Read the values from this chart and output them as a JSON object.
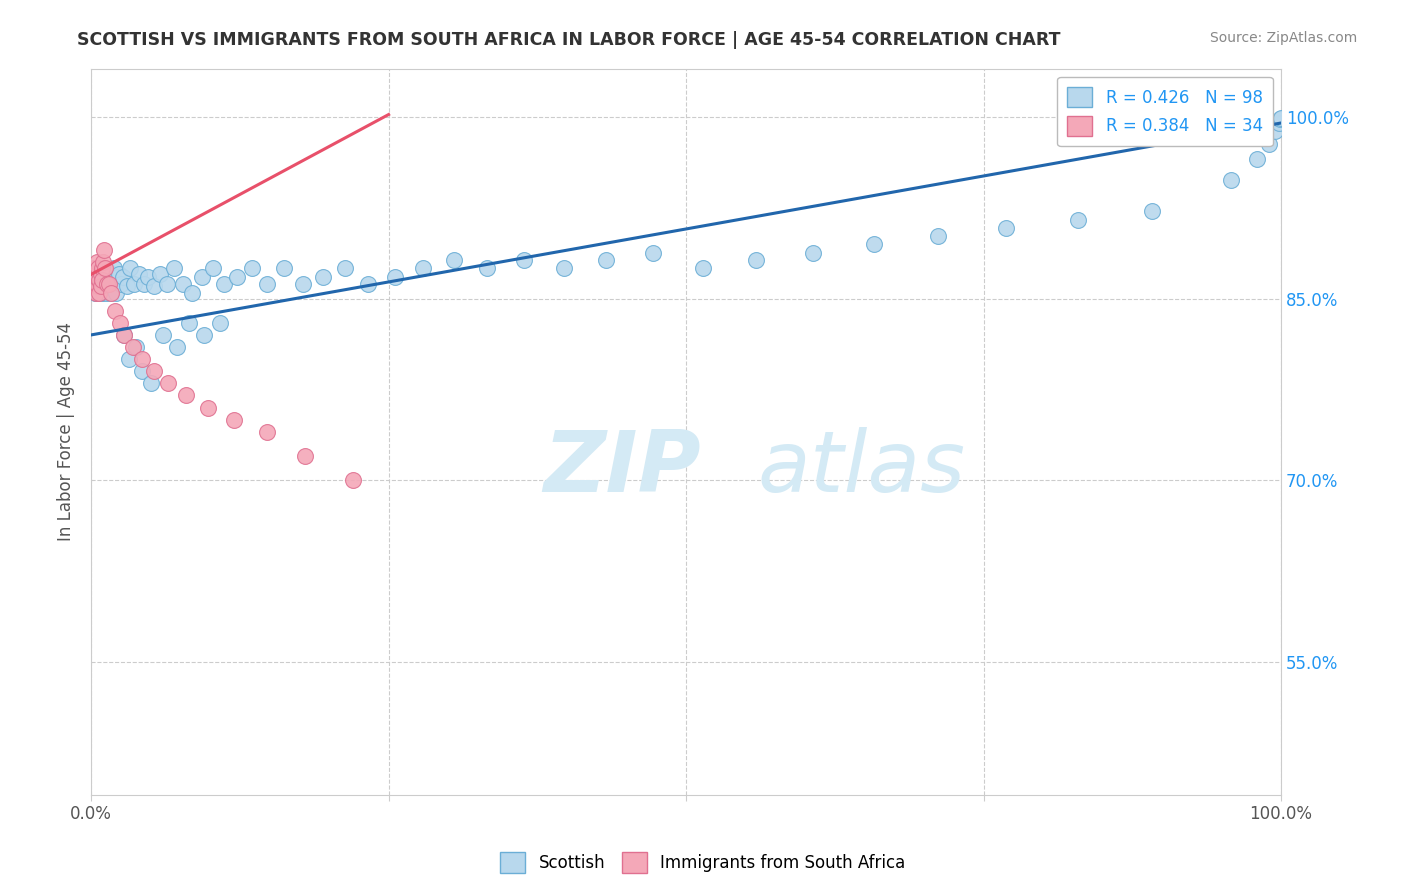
{
  "title": "SCOTTISH VS IMMIGRANTS FROM SOUTH AFRICA IN LABOR FORCE | AGE 45-54 CORRELATION CHART",
  "source_text": "Source: ZipAtlas.com",
  "ylabel": "In Labor Force | Age 45-54",
  "xlim": [
    0.0,
    1.0
  ],
  "ylim": [
    0.44,
    1.04
  ],
  "x_ticks": [
    0.0,
    0.25,
    0.5,
    0.75,
    1.0
  ],
  "x_tick_labels": [
    "0.0%",
    "",
    "",
    "",
    "100.0%"
  ],
  "y_ticks_right": [
    0.55,
    0.7,
    0.85,
    1.0
  ],
  "y_tick_labels_right": [
    "55.0%",
    "70.0%",
    "85.0%",
    "100.0%"
  ],
  "legend_blue_label": "R = 0.426   N = 98",
  "legend_pink_label": "R = 0.384   N = 34",
  "scatter_blue": {
    "color": "#b8d8ed",
    "edge_color": "#6baed6",
    "x": [
      0.002,
      0.002,
      0.003,
      0.003,
      0.004,
      0.004,
      0.005,
      0.005,
      0.005,
      0.006,
      0.006,
      0.006,
      0.007,
      0.007,
      0.007,
      0.008,
      0.008,
      0.008,
      0.009,
      0.009,
      0.01,
      0.01,
      0.01,
      0.011,
      0.011,
      0.012,
      0.012,
      0.013,
      0.013,
      0.014,
      0.015,
      0.015,
      0.016,
      0.017,
      0.018,
      0.019,
      0.02,
      0.021,
      0.022,
      0.023,
      0.025,
      0.027,
      0.03,
      0.033,
      0.036,
      0.04,
      0.044,
      0.048,
      0.053,
      0.058,
      0.064,
      0.07,
      0.077,
      0.085,
      0.093,
      0.102,
      0.112,
      0.123,
      0.135,
      0.148,
      0.162,
      0.178,
      0.195,
      0.213,
      0.233,
      0.255,
      0.279,
      0.305,
      0.333,
      0.364,
      0.397,
      0.433,
      0.472,
      0.514,
      0.559,
      0.607,
      0.658,
      0.712,
      0.769,
      0.829,
      0.892,
      0.958,
      0.98,
      0.99,
      0.995,
      0.998,
      0.999,
      1.0,
      0.028,
      0.032,
      0.038,
      0.043,
      0.05,
      0.06,
      0.072,
      0.082,
      0.095,
      0.108
    ],
    "y": [
      0.86,
      0.875,
      0.855,
      0.87,
      0.86,
      0.875,
      0.865,
      0.855,
      0.875,
      0.86,
      0.87,
      0.855,
      0.865,
      0.875,
      0.858,
      0.862,
      0.87,
      0.855,
      0.868,
      0.875,
      0.86,
      0.87,
      0.855,
      0.865,
      0.875,
      0.86,
      0.87,
      0.865,
      0.855,
      0.862,
      0.858,
      0.872,
      0.862,
      0.855,
      0.868,
      0.875,
      0.862,
      0.855,
      0.868,
      0.87,
      0.862,
      0.868,
      0.86,
      0.875,
      0.862,
      0.87,
      0.862,
      0.868,
      0.86,
      0.87,
      0.862,
      0.875,
      0.862,
      0.855,
      0.868,
      0.875,
      0.862,
      0.868,
      0.875,
      0.862,
      0.875,
      0.862,
      0.868,
      0.875,
      0.862,
      0.868,
      0.875,
      0.882,
      0.875,
      0.882,
      0.875,
      0.882,
      0.888,
      0.875,
      0.882,
      0.888,
      0.895,
      0.902,
      0.908,
      0.915,
      0.922,
      0.948,
      0.965,
      0.978,
      0.988,
      0.995,
      0.998,
      0.999,
      0.82,
      0.8,
      0.81,
      0.79,
      0.78,
      0.82,
      0.81,
      0.83,
      0.82,
      0.83
    ]
  },
  "scatter_pink": {
    "color": "#f4a8b8",
    "edge_color": "#e07090",
    "x": [
      0.002,
      0.003,
      0.003,
      0.004,
      0.004,
      0.005,
      0.005,
      0.006,
      0.006,
      0.007,
      0.007,
      0.008,
      0.008,
      0.009,
      0.009,
      0.01,
      0.011,
      0.012,
      0.013,
      0.015,
      0.017,
      0.02,
      0.024,
      0.028,
      0.035,
      0.043,
      0.053,
      0.065,
      0.08,
      0.098,
      0.12,
      0.148,
      0.18,
      0.22
    ],
    "y": [
      0.87,
      0.86,
      0.875,
      0.855,
      0.87,
      0.865,
      0.88,
      0.86,
      0.875,
      0.865,
      0.855,
      0.87,
      0.86,
      0.875,
      0.865,
      0.88,
      0.89,
      0.875,
      0.862,
      0.862,
      0.855,
      0.84,
      0.83,
      0.82,
      0.81,
      0.8,
      0.79,
      0.78,
      0.77,
      0.76,
      0.75,
      0.74,
      0.72,
      0.7
    ]
  },
  "regression_blue": {
    "color": "#2166ac",
    "x_start": 0.0,
    "y_start": 0.82,
    "x_end": 1.0,
    "y_end": 0.995
  },
  "regression_pink": {
    "color": "#e8506a",
    "x_start": 0.0,
    "y_start": 0.87,
    "x_end": 0.25,
    "y_end": 1.002
  },
  "watermark_line1": "ZIP",
  "watermark_line2": "atlas",
  "watermark_color": "#d4eaf5",
  "background_color": "#ffffff",
  "grid_color": "#cccccc",
  "title_color": "#333333",
  "axis_color": "#555555",
  "right_axis_color": "#2196F3",
  "source_color": "#888888"
}
